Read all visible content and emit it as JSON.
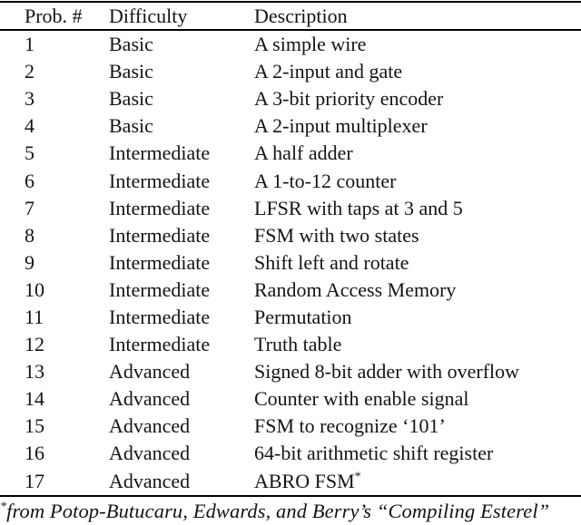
{
  "table": {
    "columns": [
      {
        "label": "Prob. #"
      },
      {
        "label": "Difficulty"
      },
      {
        "label": "Description"
      }
    ],
    "rows": [
      {
        "num": "1",
        "difficulty": "Basic",
        "description": "A simple wire"
      },
      {
        "num": "2",
        "difficulty": "Basic",
        "description": "A 2-input and gate"
      },
      {
        "num": "3",
        "difficulty": "Basic",
        "description": "A 3-bit priority encoder"
      },
      {
        "num": "4",
        "difficulty": "Basic",
        "description": "A 2-input multiplexer"
      },
      {
        "num": "5",
        "difficulty": "Intermediate",
        "description": "A half adder"
      },
      {
        "num": "6",
        "difficulty": "Intermediate",
        "description": "A 1-to-12 counter"
      },
      {
        "num": "7",
        "difficulty": "Intermediate",
        "description": "LFSR with taps at 3 and 5"
      },
      {
        "num": "8",
        "difficulty": "Intermediate",
        "description": "FSM with two states"
      },
      {
        "num": "9",
        "difficulty": "Intermediate",
        "description": "Shift left and rotate"
      },
      {
        "num": "10",
        "difficulty": "Intermediate",
        "description": "Random Access Memory"
      },
      {
        "num": "11",
        "difficulty": "Intermediate",
        "description": "Permutation"
      },
      {
        "num": "12",
        "difficulty": "Intermediate",
        "description": "Truth table"
      },
      {
        "num": "13",
        "difficulty": "Advanced",
        "description": "Signed 8-bit adder with overflow"
      },
      {
        "num": "14",
        "difficulty": "Advanced",
        "description": "Counter with enable signal"
      },
      {
        "num": "15",
        "difficulty": "Advanced",
        "description": "FSM to recognize ‘101’"
      },
      {
        "num": "16",
        "difficulty": "Advanced",
        "description": "64-bit arithmetic shift register"
      },
      {
        "num": "17",
        "difficulty": "Advanced",
        "description": "ABRO FSM",
        "marker": "*"
      }
    ],
    "footnote": {
      "marker": "*",
      "text": "from Potop-Butucaru, Edwards, and Berry’s “Compiling Esterel”"
    }
  },
  "colors": {
    "text": "#141414",
    "rule": "#000000",
    "background": "#ffffff"
  }
}
